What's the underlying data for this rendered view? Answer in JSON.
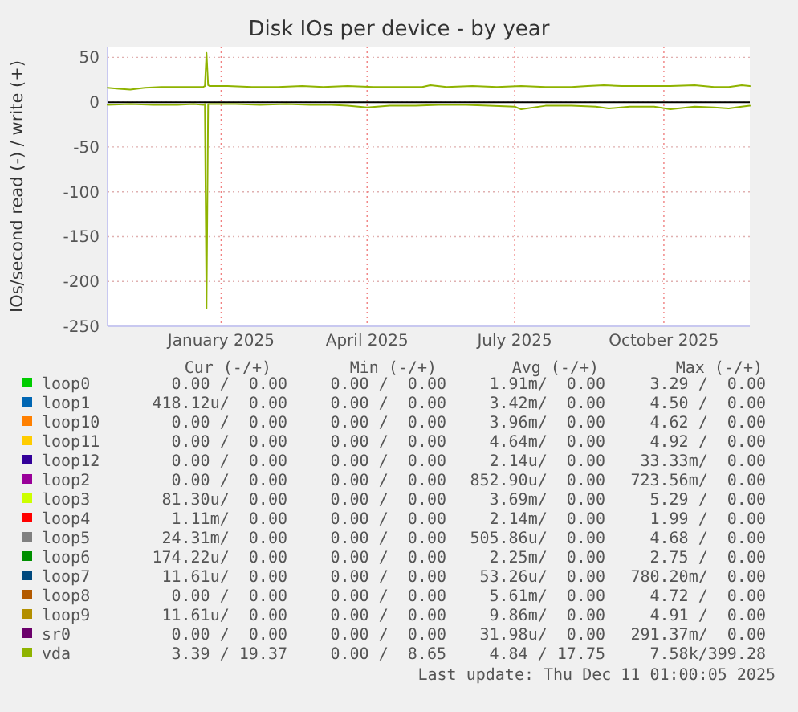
{
  "chart_data": {
    "type": "line",
    "title": "Disk IOs per device - by year",
    "ylabel": "IOs/second read (-) / write (+)",
    "xlim": [
      "2024-10-23",
      "2025-11-23"
    ],
    "xticks": [
      {
        "value": "2025-01-01",
        "label": "January 2025"
      },
      {
        "value": "2025-04-01",
        "label": "April 2025"
      },
      {
        "value": "2025-07-01",
        "label": "July 2025"
      },
      {
        "value": "2025-10-01",
        "label": "October 2025"
      }
    ],
    "ylim": [
      -250,
      62
    ],
    "yticks": [
      -250,
      -200,
      -150,
      -100,
      -50,
      0,
      50
    ],
    "grid": true,
    "legend": "bottom",
    "line_style": "solid",
    "series": [
      {
        "name": "loop0",
        "color": "#00cc00"
      },
      {
        "name": "loop1",
        "color": "#0066b3"
      },
      {
        "name": "loop10",
        "color": "#ff8000"
      },
      {
        "name": "loop11",
        "color": "#ffcc00"
      },
      {
        "name": "loop12",
        "color": "#330099"
      },
      {
        "name": "loop2",
        "color": "#990099"
      },
      {
        "name": "loop3",
        "color": "#ccff00"
      },
      {
        "name": "loop4",
        "color": "#ff0000"
      },
      {
        "name": "loop5",
        "color": "#808080"
      },
      {
        "name": "loop6",
        "color": "#008f00"
      },
      {
        "name": "loop7",
        "color": "#00487d"
      },
      {
        "name": "loop8",
        "color": "#b35a00"
      },
      {
        "name": "loop9",
        "color": "#b38f00"
      },
      {
        "name": "sr0",
        "color": "#6b006b"
      },
      {
        "name": "vda",
        "color": "#8fb300",
        "x": [
          "2024-10-23",
          "2024-10-30",
          "2024-11-06",
          "2024-11-15",
          "2024-11-25",
          "2024-12-05",
          "2024-12-15",
          "2024-12-21",
          "2024-12-22",
          "2024-12-23",
          "2024-12-24",
          "2024-12-25",
          "2025-01-05",
          "2025-01-20",
          "2025-02-05",
          "2025-02-20",
          "2025-03-05",
          "2025-03-20",
          "2025-04-05",
          "2025-04-20",
          "2025-05-05",
          "2025-05-10",
          "2025-05-20",
          "2025-06-05",
          "2025-06-20",
          "2025-07-05",
          "2025-07-20",
          "2025-08-05",
          "2025-08-15",
          "2025-08-25",
          "2025-09-05",
          "2025-09-20",
          "2025-10-05",
          "2025-10-20",
          "2025-11-01",
          "2025-11-10",
          "2025-11-18",
          "2025-11-23"
        ],
        "values": [
          16,
          15,
          14,
          16,
          17,
          17,
          17,
          17,
          18,
          55,
          19,
          18,
          18,
          17,
          17,
          18,
          17,
          18,
          17,
          17,
          17,
          19,
          17,
          18,
          17,
          18,
          17,
          17,
          18,
          19,
          18,
          18,
          18,
          19,
          17,
          17,
          19,
          18
        ]
      },
      {
        "color": "#8fb300",
        "x": [
          "2024-10-23",
          "2024-11-06",
          "2024-11-20",
          "2024-12-05",
          "2024-12-15",
          "2024-12-21",
          "2024-12-22",
          "2024-12-23",
          "2024-12-24",
          "2024-12-25",
          "2025-01-10",
          "2025-01-25",
          "2025-02-10",
          "2025-02-25",
          "2025-03-10",
          "2025-03-20",
          "2025-04-01",
          "2025-04-15",
          "2025-05-01",
          "2025-05-15",
          "2025-06-01",
          "2025-06-15",
          "2025-07-01",
          "2025-07-05",
          "2025-07-20",
          "2025-08-05",
          "2025-08-20",
          "2025-08-28",
          "2025-09-10",
          "2025-09-25",
          "2025-10-05",
          "2025-10-20",
          "2025-11-01",
          "2025-11-10",
          "2025-11-18",
          "2025-11-23"
        ],
        "values": [
          -3,
          -2,
          -3,
          -3,
          -2,
          -3,
          -2,
          -230,
          -2,
          -2,
          -2,
          -3,
          -2,
          -3,
          -3,
          -4,
          -6,
          -4,
          -4,
          -3,
          -3,
          -4,
          -5,
          -8,
          -4,
          -4,
          -5,
          -7,
          -5,
          -5,
          -8,
          -5,
          -6,
          -7,
          -5,
          -4
        ]
      }
    ],
    "annotations": [
      "Cur (-/+)",
      "Min (-/+)",
      "Avg (-/+)",
      "Max (-/+)",
      "0.00 /  0.00",
      "0.00 /  0.00",
      "1.91m/  0.00",
      "3.29 /  0.00",
      "418.12u/  0.00",
      "0.00 /  0.00",
      "3.42m/  0.00",
      "4.50 /  0.00",
      "0.00 /  0.00",
      "0.00 /  0.00",
      "3.96m/  0.00",
      "4.62 /  0.00",
      "0.00 /  0.00",
      "0.00 /  0.00",
      "4.64m/  0.00",
      "4.92 /  0.00",
      "0.00 /  0.00",
      "0.00 /  0.00",
      "2.14u/  0.00",
      "33.33m/  0.00",
      "0.00 /  0.00",
      "0.00 /  0.00",
      "852.90u/  0.00",
      "723.56m/  0.00",
      "81.30u/  0.00",
      "0.00 /  0.00",
      "3.69m/  0.00",
      "5.29 /  0.00",
      "1.11m/  0.00",
      "0.00 /  0.00",
      "2.14m/  0.00",
      "1.99 /  0.00",
      "24.31m/  0.00",
      "0.00 /  0.00",
      "505.86u/  0.00",
      "4.68 /  0.00",
      "174.22u/  0.00",
      "0.00 /  0.00",
      "2.25m/  0.00",
      "2.75 /  0.00",
      "11.61u/  0.00",
      "0.00 /  0.00",
      "53.26u/  0.00",
      "780.20m/  0.00",
      "0.00 /  0.00",
      "0.00 /  0.00",
      "5.61m/  0.00",
      "4.72 /  0.00",
      "11.61u/  0.00",
      "0.00 /  0.00",
      "9.86m/  0.00",
      "4.91 /  0.00",
      "0.00 /  0.00",
      "0.00 /  0.00",
      "31.98u/  0.00",
      "291.37m/  0.00",
      "3.39 / 19.37",
      "0.00 /  8.65",
      "4.84 / 17.75",
      "7.58k/399.28",
      "Last update: Thu Dec 11 01:00:05 2025"
    ]
  }
}
